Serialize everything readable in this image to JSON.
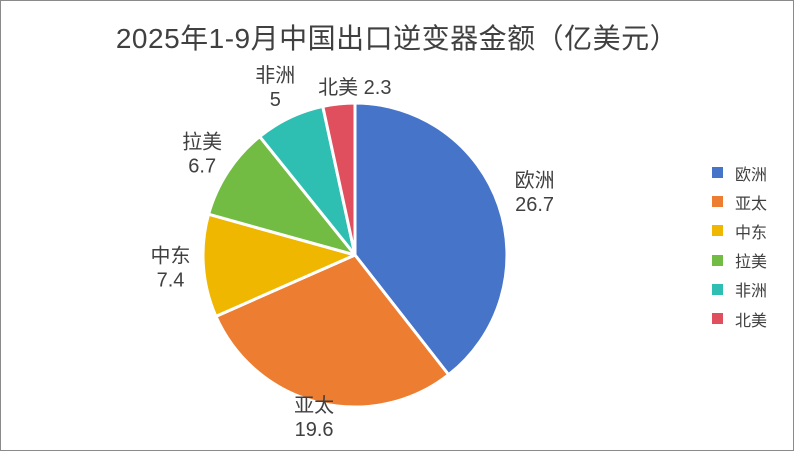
{
  "window": {
    "background": "#FFFFFF",
    "border_color": "#8A8A8A"
  },
  "chart_data": {
    "type": "pie",
    "title": "2025年1-9月中国出口逆变器金额（亿美元）",
    "unit": "亿美元",
    "categories": [
      "欧洲",
      "亚太",
      "中东",
      "拉美",
      "非洲",
      "北美"
    ],
    "values": [
      26.7,
      19.6,
      7.4,
      6.7,
      5,
      2.3
    ],
    "total": 67.7,
    "colors": [
      "#4674C8",
      "#ED7D31",
      "#EFB700",
      "#72BC44",
      "#2FBFB2",
      "#E04F5E"
    ],
    "text_color": "#404040",
    "slice_labels": [
      "欧洲 26.7",
      "亚太 19.6",
      "中东 7.4",
      "拉美 6.7",
      "非洲 5",
      "北美 2.3"
    ],
    "legend_position": "right",
    "legend_entries": [
      "欧洲",
      "亚太",
      "中东",
      "拉美",
      "非洲",
      "北美"
    ],
    "start_angle": "12-oclock",
    "direction": "clockwise",
    "grid": "off"
  }
}
